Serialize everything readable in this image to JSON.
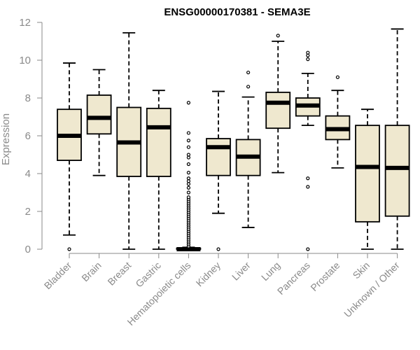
{
  "chart_data": {
    "type": "boxplot",
    "title": "ENSG00000170381 - SEMA3E",
    "xlabel": "",
    "ylabel": "Expression",
    "ylim": [
      0,
      12
    ],
    "yticks": [
      0,
      2,
      4,
      6,
      8,
      10,
      12
    ],
    "colors": {
      "box_fill": "#efe8cf",
      "stroke": "#000000",
      "axis": "#8a8a8a"
    },
    "categories": [
      "Bladder",
      "Brain",
      "Breast",
      "Gastric",
      "Hematopoietic cells",
      "Kidney",
      "Liver",
      "Lung",
      "Pancreas",
      "Prostate",
      "Skin",
      "Unknown / Other"
    ],
    "boxes": [
      {
        "name": "Bladder",
        "whisker_low": 0.75,
        "q1": 4.7,
        "median": 6.0,
        "q3": 7.4,
        "whisker_high": 9.85,
        "outliers": [
          0.0
        ]
      },
      {
        "name": "Brain",
        "whisker_low": 3.9,
        "q1": 6.1,
        "median": 6.95,
        "q3": 8.15,
        "whisker_high": 9.5,
        "outliers": []
      },
      {
        "name": "Breast",
        "whisker_low": 0.0,
        "q1": 3.85,
        "median": 5.65,
        "q3": 7.5,
        "whisker_high": 11.45,
        "outliers": []
      },
      {
        "name": "Gastric",
        "whisker_low": 0.0,
        "q1": 3.85,
        "median": 6.45,
        "q3": 7.45,
        "whisker_high": 8.4,
        "outliers": []
      },
      {
        "name": "Hematopoietic cells",
        "whisker_low": 0.0,
        "q1": 0.0,
        "median": 0.0,
        "q3": 0.05,
        "whisker_high": 0.1,
        "outliers": [
          0.15,
          0.25,
          0.35,
          0.45,
          0.55,
          0.65,
          0.75,
          0.85,
          0.95,
          1.05,
          1.15,
          1.25,
          1.35,
          1.45,
          1.55,
          1.65,
          1.75,
          1.85,
          1.95,
          2.05,
          2.15,
          2.25,
          2.35,
          2.45,
          2.55,
          2.65,
          2.75,
          3.0,
          3.25,
          3.45,
          3.6,
          3.75,
          4.05,
          4.5,
          4.85,
          5.0,
          5.4,
          5.75,
          6.15,
          7.75
        ]
      },
      {
        "name": "Kidney",
        "whisker_low": 1.9,
        "q1": 3.9,
        "median": 5.4,
        "q3": 5.85,
        "whisker_high": 8.35,
        "outliers": [
          0.0
        ]
      },
      {
        "name": "Liver",
        "whisker_low": 1.15,
        "q1": 3.9,
        "median": 4.9,
        "q3": 5.8,
        "whisker_high": 8.05,
        "outliers": [
          8.6,
          9.35
        ]
      },
      {
        "name": "Lung",
        "whisker_low": 4.05,
        "q1": 6.4,
        "median": 7.75,
        "q3": 8.3,
        "whisker_high": 11.0,
        "outliers": [
          11.3
        ]
      },
      {
        "name": "Pancreas",
        "whisker_low": 6.55,
        "q1": 7.05,
        "median": 7.6,
        "q3": 8.0,
        "whisker_high": 9.3,
        "outliers": [
          0.0,
          3.3,
          3.75,
          10.05,
          10.25,
          10.4
        ]
      },
      {
        "name": "Prostate",
        "whisker_low": 4.3,
        "q1": 5.8,
        "median": 6.35,
        "q3": 7.05,
        "whisker_high": 8.4,
        "outliers": [
          9.1
        ]
      },
      {
        "name": "Skin",
        "whisker_low": 0.0,
        "q1": 1.45,
        "median": 4.35,
        "q3": 6.55,
        "whisker_high": 7.4,
        "outliers": []
      },
      {
        "name": "Unknown / Other",
        "whisker_low": 0.0,
        "q1": 1.75,
        "median": 4.3,
        "q3": 6.55,
        "whisker_high": 11.65,
        "outliers": []
      }
    ]
  }
}
